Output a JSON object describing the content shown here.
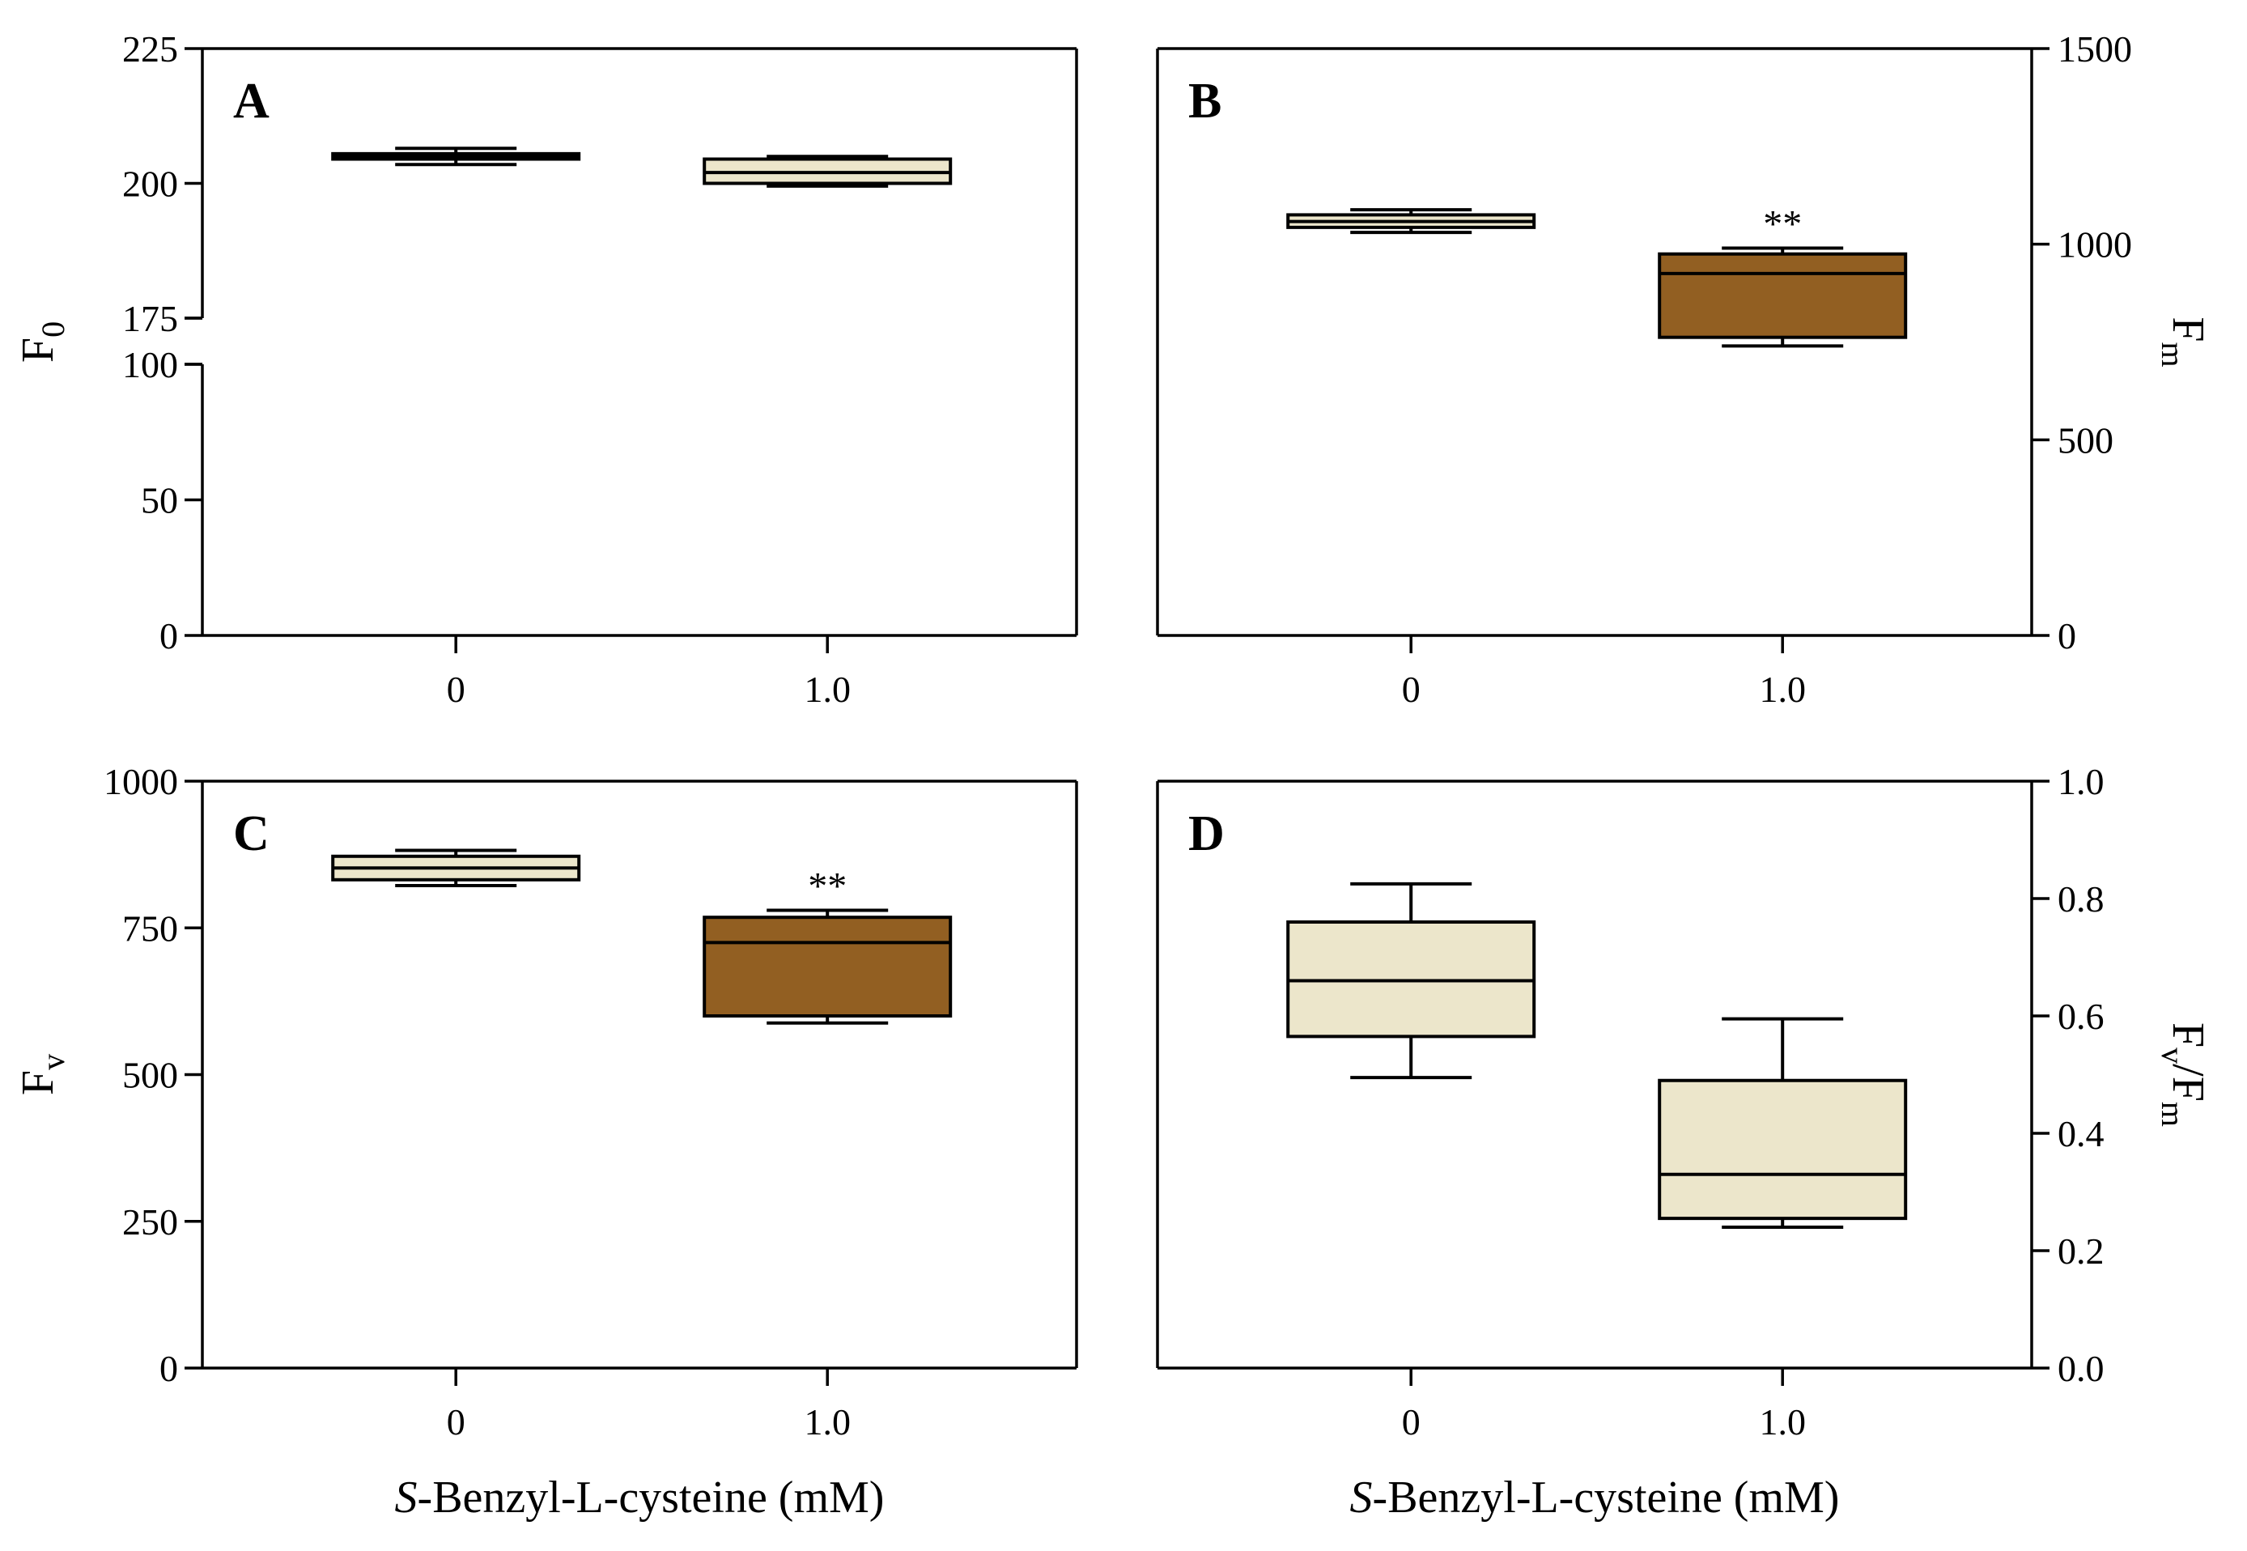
{
  "colors": {
    "light": "#ece6cb",
    "dark": "#925f22",
    "stroke": "#000000"
  },
  "xlabel": {
    "italic": "S",
    "rest": "-Benzyl-L-cysteine (mM)"
  },
  "chart_data": [
    {
      "panel": "A",
      "type": "box",
      "categories": [
        "0",
        "1.0"
      ],
      "ylabel": "F",
      "ylabel_sub": "0",
      "yaxis_side": "left",
      "broken_axis": true,
      "lower_segment": {
        "range": [
          0,
          100
        ],
        "ticks": [
          "0",
          "50",
          "100"
        ]
      },
      "upper_segment": {
        "range": [
          175,
          225
        ],
        "ticks": [
          "175",
          "200",
          "225"
        ]
      },
      "ylim": [
        0,
        225
      ],
      "boxes": [
        {
          "category": "0",
          "min": 203.5,
          "q1": 204.5,
          "median": 205,
          "q3": 205.5,
          "max": 206.5,
          "color": "light",
          "sig": ""
        },
        {
          "category": "1.0",
          "min": 199.5,
          "q1": 200,
          "median": 202,
          "q3": 204.5,
          "max": 205,
          "color": "light",
          "sig": ""
        }
      ]
    },
    {
      "panel": "B",
      "type": "box",
      "categories": [
        "0",
        "1.0"
      ],
      "ylabel": "F",
      "ylabel_sub": "m",
      "yaxis_side": "right",
      "ylim": [
        0,
        1500
      ],
      "ticks": [
        "0",
        "500",
        "1000",
        "1500"
      ],
      "boxes": [
        {
          "category": "0",
          "min": 1030,
          "q1": 1043,
          "median": 1058,
          "q3": 1075,
          "max": 1088,
          "color": "light",
          "sig": ""
        },
        {
          "category": "1.0",
          "min": 740,
          "q1": 762,
          "median": 925,
          "q3": 975,
          "max": 990,
          "color": "dark",
          "sig": "**"
        }
      ]
    },
    {
      "panel": "C",
      "type": "box",
      "categories": [
        "0",
        "1.0"
      ],
      "ylabel": "F",
      "ylabel_sub": "v",
      "yaxis_side": "left",
      "ylim": [
        0,
        1000
      ],
      "ticks": [
        "0",
        "250",
        "500",
        "750",
        "1000"
      ],
      "boxes": [
        {
          "category": "0",
          "min": 822,
          "q1": 832,
          "median": 852,
          "q3": 872,
          "max": 882,
          "color": "light",
          "sig": ""
        },
        {
          "category": "1.0",
          "min": 588,
          "q1": 600,
          "median": 725,
          "q3": 768,
          "max": 780,
          "color": "dark",
          "sig": "**"
        }
      ]
    },
    {
      "panel": "D",
      "type": "box",
      "categories": [
        "0",
        "1.0"
      ],
      "ylabel": "F",
      "ylabel_sub": "v",
      "ylabel_rest": "/F",
      "ylabel_sub2": "m",
      "yaxis_side": "right",
      "ylim": [
        0,
        1.0
      ],
      "ticks": [
        "0.0",
        "0.2",
        "0.4",
        "0.6",
        "0.8",
        "1.0"
      ],
      "boxes": [
        {
          "category": "0",
          "min": 0.495,
          "q1": 0.565,
          "median": 0.66,
          "q3": 0.76,
          "max": 0.825,
          "color": "light",
          "sig": ""
        },
        {
          "category": "1.0",
          "min": 0.24,
          "q1": 0.255,
          "median": 0.33,
          "q3": 0.49,
          "max": 0.595,
          "color": "light",
          "sig": ""
        }
      ]
    }
  ]
}
